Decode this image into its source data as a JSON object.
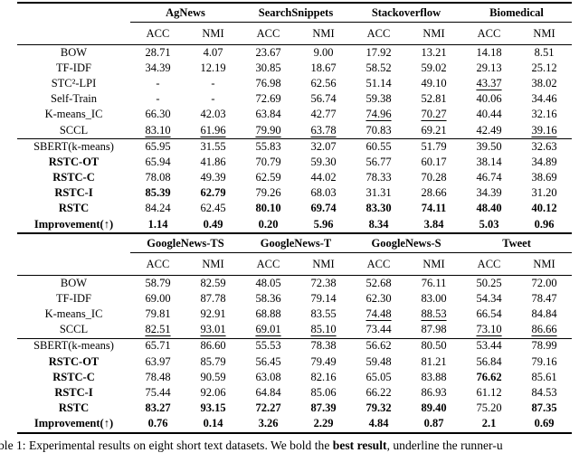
{
  "page": {
    "background": "#ffffff",
    "text_color": "#000000",
    "rule_color": "#000000"
  },
  "caption": {
    "text_before_bold": "ble 1: Experimental results on eight short text datasets. We bold the ",
    "bold_text": "best result",
    "text_after_bold": ", underline the runner-u"
  },
  "tables": [
    {
      "name": "results-table-top",
      "groups": [
        "AgNews",
        "SearchSnippets",
        "Stackoverflow",
        "Biomedical"
      ],
      "subheaders": [
        "ACC",
        "NMI",
        "ACC",
        "NMI",
        "ACC",
        "NMI",
        "ACC",
        "NMI"
      ],
      "sections": [
        {
          "rows": [
            {
              "label": "BOW",
              "bold_label": false,
              "values": [
                "28.71",
                "4.07",
                "23.67",
                "9.00",
                "17.92",
                "13.21",
                "14.18",
                "8.51"
              ],
              "bold": [],
              "underline": []
            },
            {
              "label": "TF-IDF",
              "bold_label": false,
              "values": [
                "34.39",
                "12.19",
                "30.85",
                "18.67",
                "58.52",
                "59.02",
                "29.13",
                "25.12"
              ],
              "bold": [],
              "underline": []
            },
            {
              "label": "STC²-LPI",
              "bold_label": false,
              "values": [
                "-",
                "-",
                "76.98",
                "62.56",
                "51.14",
                "49.10",
                "43.37",
                "38.02"
              ],
              "bold": [],
              "underline": [
                6
              ]
            },
            {
              "label": "Self-Train",
              "bold_label": false,
              "values": [
                "-",
                "-",
                "72.69",
                "56.74",
                "59.38",
                "52.81",
                "40.06",
                "34.46"
              ],
              "bold": [],
              "underline": []
            },
            {
              "label": "K-means_IC",
              "bold_label": false,
              "values": [
                "66.30",
                "42.03",
                "63.84",
                "42.77",
                "74.96",
                "70.27",
                "40.44",
                "32.16"
              ],
              "bold": [],
              "underline": [
                4,
                5
              ]
            },
            {
              "label": "SCCL",
              "bold_label": false,
              "values": [
                "83.10",
                "61.96",
                "79.90",
                "63.78",
                "70.83",
                "69.21",
                "42.49",
                "39.16"
              ],
              "bold": [],
              "underline": [
                0,
                1,
                2,
                3,
                7
              ]
            }
          ]
        },
        {
          "rows": [
            {
              "label": "SBERT(k-means)",
              "bold_label": false,
              "values": [
                "65.95",
                "31.55",
                "55.83",
                "32.07",
                "60.55",
                "51.79",
                "39.50",
                "32.63"
              ],
              "bold": [],
              "underline": []
            },
            {
              "label": "RSTC-OT",
              "bold_label": true,
              "values": [
                "65.94",
                "41.86",
                "70.79",
                "59.30",
                "56.77",
                "60.17",
                "38.14",
                "34.89"
              ],
              "bold": [],
              "underline": []
            },
            {
              "label": "RSTC-C",
              "bold_label": true,
              "values": [
                "78.08",
                "49.39",
                "62.59",
                "44.02",
                "78.33",
                "70.28",
                "46.74",
                "38.69"
              ],
              "bold": [],
              "underline": []
            },
            {
              "label": "RSTC-I",
              "bold_label": true,
              "values": [
                "85.39",
                "62.79",
                "79.26",
                "68.03",
                "31.31",
                "28.66",
                "34.39",
                "31.20"
              ],
              "bold": [
                0,
                1
              ],
              "underline": []
            },
            {
              "label": "RSTC",
              "bold_label": true,
              "values": [
                "84.24",
                "62.45",
                "80.10",
                "69.74",
                "83.30",
                "74.11",
                "48.40",
                "40.12"
              ],
              "bold": [
                2,
                3,
                4,
                5,
                6,
                7
              ],
              "underline": []
            },
            {
              "label": "Improvement(↑)",
              "bold_label": true,
              "values": [
                "1.14",
                "0.49",
                "0.20",
                "5.96",
                "8.34",
                "3.84",
                "5.03",
                "0.96"
              ],
              "bold": [
                0,
                1,
                2,
                3,
                4,
                5,
                6,
                7
              ],
              "underline": []
            }
          ]
        }
      ]
    },
    {
      "name": "results-table-bottom",
      "groups": [
        "GoogleNews-TS",
        "GoogleNews-T",
        "GoogleNews-S",
        "Tweet"
      ],
      "subheaders": [
        "ACC",
        "NMI",
        "ACC",
        "NMI",
        "ACC",
        "NMI",
        "ACC",
        "NMI"
      ],
      "sections": [
        {
          "rows": [
            {
              "label": "BOW",
              "bold_label": false,
              "values": [
                "58.79",
                "82.59",
                "48.05",
                "72.38",
                "52.68",
                "76.11",
                "50.25",
                "72.00"
              ],
              "bold": [],
              "underline": []
            },
            {
              "label": "TF-IDF",
              "bold_label": false,
              "values": [
                "69.00",
                "87.78",
                "58.36",
                "79.14",
                "62.30",
                "83.00",
                "54.34",
                "78.47"
              ],
              "bold": [],
              "underline": []
            },
            {
              "label": "K-means_IC",
              "bold_label": false,
              "values": [
                "79.81",
                "92.91",
                "68.88",
                "83.55",
                "74.48",
                "88.53",
                "66.54",
                "84.84"
              ],
              "bold": [],
              "underline": [
                4,
                5
              ]
            },
            {
              "label": "SCCL",
              "bold_label": false,
              "values": [
                "82.51",
                "93.01",
                "69.01",
                "85.10",
                "73.44",
                "87.98",
                "73.10",
                "86.66"
              ],
              "bold": [],
              "underline": [
                0,
                1,
                2,
                3,
                6,
                7
              ]
            }
          ]
        },
        {
          "rows": [
            {
              "label": "SBERT(k-means)",
              "bold_label": false,
              "values": [
                "65.71",
                "86.60",
                "55.53",
                "78.38",
                "56.62",
                "80.50",
                "53.44",
                "78.99"
              ],
              "bold": [],
              "underline": []
            },
            {
              "label": "RSTC-OT",
              "bold_label": true,
              "values": [
                "63.97",
                "85.79",
                "56.45",
                "79.49",
                "59.48",
                "81.21",
                "56.84",
                "79.16"
              ],
              "bold": [],
              "underline": []
            },
            {
              "label": "RSTC-C",
              "bold_label": true,
              "values": [
                "78.48",
                "90.59",
                "63.08",
                "82.16",
                "65.05",
                "83.88",
                "76.62",
                "85.61"
              ],
              "bold": [
                6
              ],
              "underline": []
            },
            {
              "label": "RSTC-I",
              "bold_label": true,
              "values": [
                "75.44",
                "92.06",
                "64.84",
                "85.06",
                "66.22",
                "86.93",
                "61.12",
                "84.53"
              ],
              "bold": [],
              "underline": []
            },
            {
              "label": "RSTC",
              "bold_label": true,
              "values": [
                "83.27",
                "93.15",
                "72.27",
                "87.39",
                "79.32",
                "89.40",
                "75.20",
                "87.35"
              ],
              "bold": [
                0,
                1,
                2,
                3,
                4,
                5,
                7
              ],
              "underline": []
            },
            {
              "label": "Improvement(↑)",
              "bold_label": true,
              "values": [
                "0.76",
                "0.14",
                "3.26",
                "2.29",
                "4.84",
                "0.87",
                "2.1",
                "0.69"
              ],
              "bold": [
                0,
                1,
                2,
                3,
                4,
                5,
                6,
                7
              ],
              "underline": []
            }
          ]
        }
      ]
    }
  ]
}
